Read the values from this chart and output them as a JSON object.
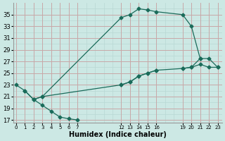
{
  "xlabel": "Humidex (Indice chaleur)",
  "bg_color": "#cce8e4",
  "grid_major_color": "#c8a8a8",
  "grid_minor_color": "#b8d8d4",
  "line_color": "#1a6b5a",
  "line1_x": [
    1,
    2,
    3,
    12,
    13,
    14,
    15,
    16,
    19,
    20,
    21
  ],
  "line1_y": [
    22,
    20.5,
    21,
    34.5,
    35.0,
    36.0,
    35.8,
    35.5,
    35.0,
    33.0,
    27.5
  ],
  "line2_x": [
    2,
    3,
    12,
    13,
    14,
    15,
    16,
    19,
    20,
    21,
    22,
    23
  ],
  "line2_y": [
    20.5,
    21,
    23.0,
    23.5,
    24.5,
    25.0,
    25.5,
    25.8,
    26.0,
    26.5,
    26.0,
    26.0
  ],
  "line3_x": [
    0,
    1,
    2,
    3,
    4,
    5,
    6,
    7
  ],
  "line3_y": [
    23,
    22,
    20.5,
    19.5,
    18.5,
    17.5,
    17.2,
    17
  ],
  "line3b_x": [
    12,
    13,
    14,
    15,
    16
  ],
  "line3b_y": [
    23.0,
    23.5,
    24.5,
    25.0,
    25.5
  ],
  "line3c_x": [
    19,
    20,
    21,
    22,
    23
  ],
  "line3c_y": [
    25.8,
    26.0,
    27.5,
    27.5,
    26.0
  ],
  "xlim": [
    -0.3,
    23.5
  ],
  "ylim": [
    16.5,
    37.0
  ],
  "yticks": [
    17,
    19,
    21,
    23,
    25,
    27,
    29,
    31,
    33,
    35
  ],
  "xticks": [
    0,
    1,
    2,
    3,
    4,
    5,
    6,
    7,
    12,
    13,
    14,
    15,
    16,
    19,
    20,
    21,
    22,
    23
  ],
  "all_x_grid": [
    0,
    1,
    2,
    3,
    4,
    5,
    6,
    7,
    8,
    9,
    10,
    11,
    12,
    13,
    14,
    15,
    16,
    17,
    18,
    19,
    20,
    21,
    22,
    23
  ]
}
